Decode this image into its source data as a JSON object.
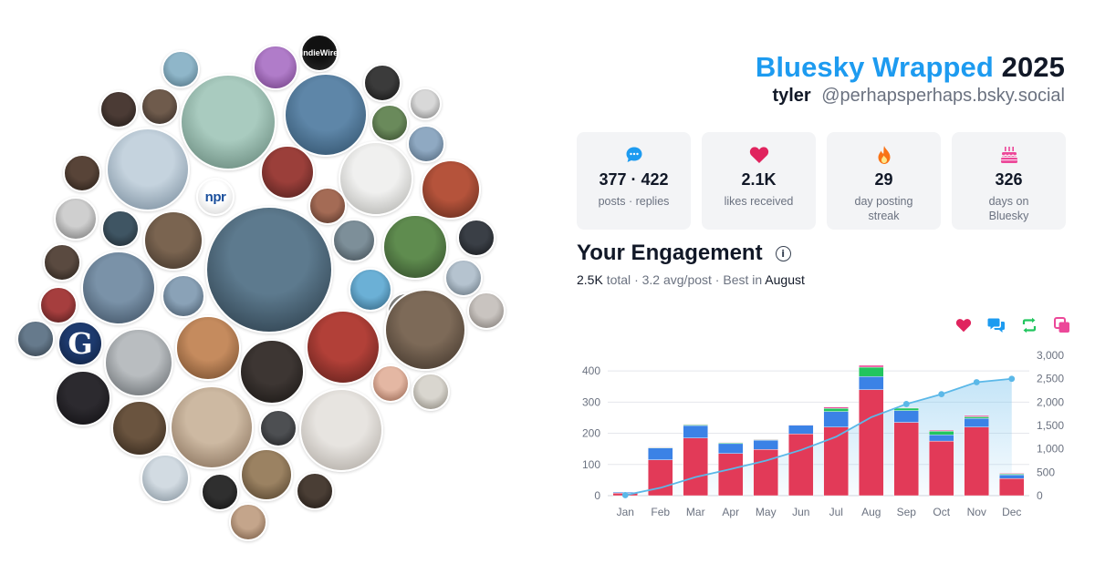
{
  "header": {
    "brand": "Bluesky Wrapped",
    "year": "2025",
    "username": "tyler",
    "handle": "@perhapsperhaps.bsky.social"
  },
  "stats": [
    {
      "icon": "chat-bubble-icon",
      "value": "377 · 422",
      "label": "posts · replies",
      "color": "#1d9bf0"
    },
    {
      "icon": "heart-icon",
      "value": "2.1K",
      "label": "likes received",
      "color": "#e0245e"
    },
    {
      "icon": "flame-icon",
      "value": "29",
      "label": "day posting streak",
      "color": "#f97316"
    },
    {
      "icon": "cake-icon",
      "value": "326",
      "label": "days on Bluesky",
      "color": "#ec4899"
    }
  ],
  "engagement": {
    "title": "Your Engagement",
    "total": "2.5K",
    "total_suffix": "total",
    "avg": "3.2 avg/post",
    "best_prefix": "Best in",
    "best_month": "August",
    "legend": [
      {
        "icon": "heart-icon",
        "color": "#e0245e"
      },
      {
        "icon": "reply-icon",
        "color": "#1d9bf0"
      },
      {
        "icon": "repost-icon",
        "color": "#22c55e"
      },
      {
        "icon": "quote-icon",
        "color": "#ec4899"
      }
    ]
  },
  "avatars": {
    "count": 58,
    "labels": [
      "IndieWire",
      "npr",
      "G"
    ]
  },
  "chart_data": {
    "type": "bar",
    "stacked": true,
    "categories": [
      "Jan",
      "Feb",
      "Mar",
      "Apr",
      "May",
      "Jun",
      "Jul",
      "Aug",
      "Sep",
      "Oct",
      "Nov",
      "Dec"
    ],
    "series": [
      {
        "values": [
          8,
          115,
          185,
          135,
          148,
          198,
          220,
          340,
          235,
          175,
          220,
          55
        ],
        "color": "#e23a58"
      },
      {
        "values": [
          3,
          38,
          40,
          32,
          30,
          28,
          50,
          42,
          38,
          20,
          28,
          12
        ],
        "color": "#3b82e6"
      },
      {
        "values": [
          0,
          2,
          3,
          3,
          2,
          0,
          10,
          30,
          8,
          12,
          5,
          3
        ],
        "color": "#22c55e"
      },
      {
        "values": [
          0,
          1,
          1,
          1,
          1,
          1,
          4,
          6,
          1,
          3,
          4,
          2
        ],
        "color": "#ec4899"
      }
    ],
    "cumulative": {
      "values": [
        11,
        167,
        396,
        567,
        748,
        975,
        1259,
        1677,
        1959,
        2169,
        2426,
        2498
      ],
      "color": "#5bb8e8"
    },
    "ylim": [
      0,
      450
    ],
    "y_ticks": [
      0,
      100,
      200,
      300,
      400
    ],
    "y2lim": [
      0,
      3000
    ],
    "y2_ticks": [
      0,
      500,
      1000,
      1500,
      2000,
      2500,
      3000
    ],
    "y2_tick_labels": [
      "0",
      "500",
      "1,000",
      "1,500",
      "2,000",
      "2,500",
      "3,000"
    ],
    "grid": true
  }
}
